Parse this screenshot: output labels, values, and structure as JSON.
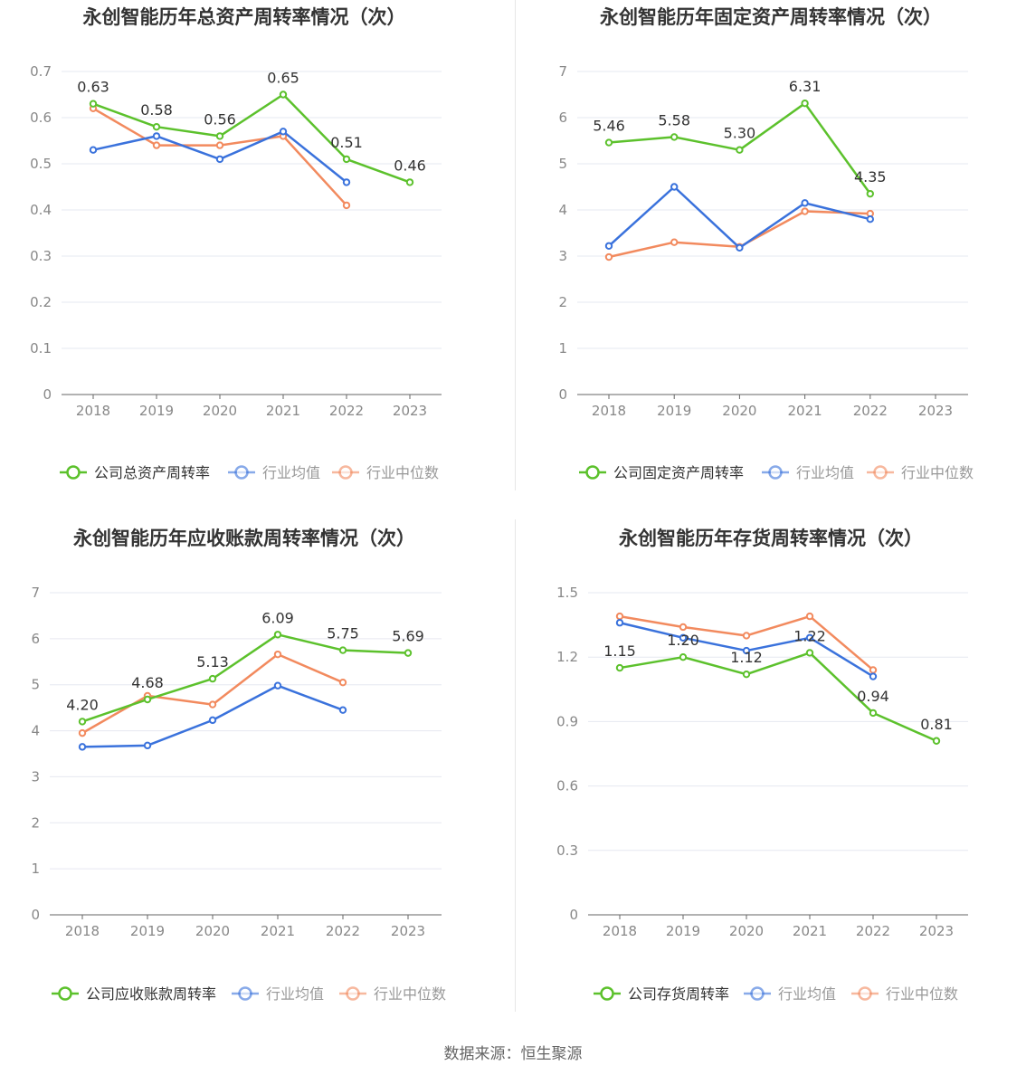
{
  "colors": {
    "company": "#5cc12c",
    "avg": "#3a72dc",
    "median": "#f28a5e"
  },
  "source": "数据来源：恒生聚源",
  "chart_data": [
    {
      "type": "line",
      "title": "永创智能历年总资产周转率情况（次）",
      "categories": [
        "2018",
        "2019",
        "2020",
        "2021",
        "2022",
        "2023"
      ],
      "ylim": [
        0,
        0.7
      ],
      "yticks": [
        0,
        0.1,
        0.2,
        0.3,
        0.4,
        0.5,
        0.6,
        0.7
      ],
      "ytick_labels": [
        "0",
        "0.1",
        "0.2",
        "0.3",
        "0.4",
        "0.5",
        "0.6",
        "0.7"
      ],
      "grid": true,
      "legend": "bottom",
      "series": [
        {
          "name": "公司总资产周转率",
          "role": "company",
          "values": [
            0.63,
            0.58,
            0.56,
            0.65,
            0.51,
            0.46
          ],
          "labels": [
            "0.63",
            "0.58",
            "0.56",
            "0.65",
            "0.51",
            "0.46"
          ]
        },
        {
          "name": "行业均值",
          "role": "avg",
          "values": [
            0.53,
            0.56,
            0.51,
            0.57,
            0.46,
            null
          ]
        },
        {
          "name": "行业中位数",
          "role": "median",
          "values": [
            0.62,
            0.54,
            0.54,
            0.56,
            0.41,
            null
          ]
        }
      ]
    },
    {
      "type": "line",
      "title": "永创智能历年固定资产周转率情况（次）",
      "categories": [
        "2018",
        "2019",
        "2020",
        "2021",
        "2022",
        "2023"
      ],
      "ylim": [
        0,
        7
      ],
      "yticks": [
        0,
        1,
        2,
        3,
        4,
        5,
        6,
        7
      ],
      "ytick_labels": [
        "0",
        "1",
        "2",
        "3",
        "4",
        "5",
        "6",
        "7"
      ],
      "grid": true,
      "legend": "bottom",
      "series": [
        {
          "name": "公司固定资产周转率",
          "role": "company",
          "values": [
            5.46,
            5.58,
            5.3,
            6.31,
            4.35,
            null
          ],
          "labels": [
            "5.46",
            "5.58",
            "5.30",
            "6.31",
            "4.35",
            null
          ]
        },
        {
          "name": "行业均值",
          "role": "avg",
          "values": [
            3.22,
            4.5,
            3.18,
            4.15,
            3.8,
            null
          ]
        },
        {
          "name": "行业中位数",
          "role": "median",
          "values": [
            2.98,
            3.3,
            3.2,
            3.97,
            3.92,
            null
          ]
        }
      ]
    },
    {
      "type": "line",
      "title": "永创智能历年应收账款周转率情况（次）",
      "categories": [
        "2018",
        "2019",
        "2020",
        "2021",
        "2022",
        "2023"
      ],
      "ylim": [
        0,
        7
      ],
      "yticks": [
        0,
        1,
        2,
        3,
        4,
        5,
        6,
        7
      ],
      "ytick_labels": [
        "0",
        "1",
        "2",
        "3",
        "4",
        "5",
        "6",
        "7"
      ],
      "grid": true,
      "legend": "bottom",
      "series": [
        {
          "name": "公司应收账款周转率",
          "role": "company",
          "values": [
            4.2,
            4.68,
            5.13,
            6.09,
            5.75,
            5.69
          ],
          "labels": [
            "4.20",
            "4.68",
            "5.13",
            "6.09",
            "5.75",
            "5.69"
          ]
        },
        {
          "name": "行业均值",
          "role": "avg",
          "values": [
            3.65,
            3.68,
            4.23,
            4.98,
            4.45,
            null
          ]
        },
        {
          "name": "行业中位数",
          "role": "median",
          "values": [
            3.95,
            4.76,
            4.57,
            5.66,
            5.05,
            null
          ]
        }
      ]
    },
    {
      "type": "line",
      "title": "永创智能历年存货周转率情况（次）",
      "categories": [
        "2018",
        "2019",
        "2020",
        "2021",
        "2022",
        "2023"
      ],
      "ylim": [
        0,
        1.5
      ],
      "yticks": [
        0,
        0.3,
        0.6,
        0.9,
        1.2,
        1.5
      ],
      "ytick_labels": [
        "0",
        "0.3",
        "0.6",
        "0.9",
        "1.2",
        "1.5"
      ],
      "grid": true,
      "legend": "bottom",
      "series": [
        {
          "name": "公司存货周转率",
          "role": "company",
          "values": [
            1.15,
            1.2,
            1.12,
            1.22,
            0.94,
            0.81
          ],
          "labels": [
            "1.15",
            "1.20",
            "1.12",
            "1.22",
            "0.94",
            "0.81"
          ]
        },
        {
          "name": "行业均值",
          "role": "avg",
          "values": [
            1.36,
            1.29,
            1.23,
            1.29,
            1.11,
            null
          ]
        },
        {
          "name": "行业中位数",
          "role": "median",
          "values": [
            1.39,
            1.34,
            1.3,
            1.39,
            1.14,
            null
          ]
        }
      ]
    }
  ]
}
